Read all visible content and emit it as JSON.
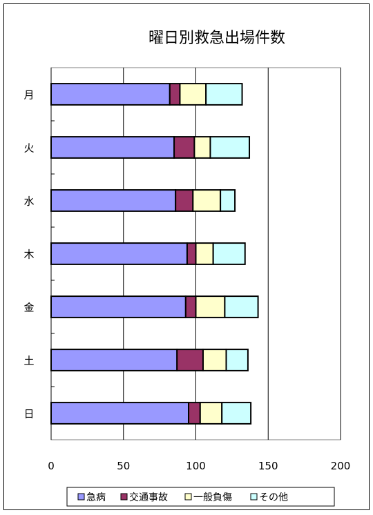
{
  "chart_data": {
    "type": "bar",
    "orientation": "horizontal",
    "stacked": true,
    "title": "曜日別救急出場件数",
    "categories": [
      "月",
      "火",
      "水",
      "木",
      "金",
      "土",
      "日"
    ],
    "series": [
      {
        "name": "急病",
        "color": "#9999ff",
        "values": [
          82,
          85,
          86,
          94,
          93,
          87,
          95
        ]
      },
      {
        "name": "交通事故",
        "color": "#993366",
        "values": [
          7,
          14,
          12,
          6,
          7,
          18,
          8
        ]
      },
      {
        "name": "一般負傷",
        "color": "#ffffcc",
        "values": [
          18,
          11,
          19,
          12,
          20,
          16,
          15
        ]
      },
      {
        "name": "その他",
        "color": "#ccffff",
        "values": [
          25,
          27,
          10,
          22,
          23,
          15,
          20
        ]
      }
    ],
    "xlim": [
      0,
      200
    ],
    "xticks": [
      0,
      50,
      100,
      150,
      200
    ],
    "grid": "vertical",
    "legend_position": "bottom"
  }
}
